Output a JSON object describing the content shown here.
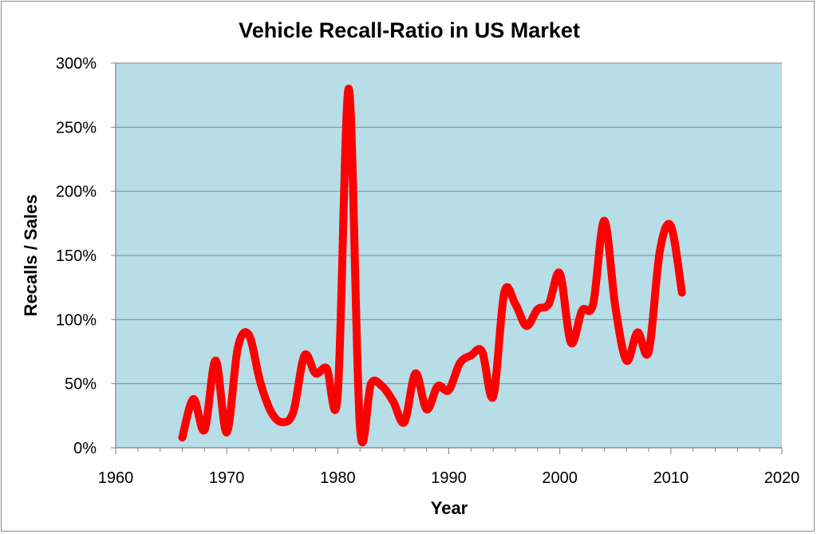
{
  "chart_data": {
    "type": "line",
    "title": "Vehicle Recall-Ratio  in US Market",
    "xlabel": "Year",
    "ylabel": "Recalls / Sales",
    "xlim": [
      1960,
      2020
    ],
    "ylim": [
      0,
      300
    ],
    "x_ticks": [
      1960,
      1970,
      1980,
      1990,
      2000,
      2010,
      2020
    ],
    "y_ticks": [
      0,
      50,
      100,
      150,
      200,
      250,
      300
    ],
    "y_tick_labels": [
      "0%",
      "50%",
      "100%",
      "150%",
      "200%",
      "250%",
      "300%"
    ],
    "grid": "horizontal",
    "legend": "none",
    "plot_background": "#b7dde7",
    "series": [
      {
        "color": "#ff0000",
        "x": [
          1966,
          1967,
          1968,
          1969,
          1970,
          1971,
          1972,
          1973,
          1974,
          1975,
          1976,
          1977,
          1978,
          1979,
          1980,
          1981,
          1982,
          1983,
          1984,
          1985,
          1986,
          1987,
          1988,
          1989,
          1990,
          1991,
          1992,
          1993,
          1994,
          1995,
          1996,
          1997,
          1998,
          1999,
          2000,
          2001,
          2002,
          2003,
          2004,
          2005,
          2006,
          2007,
          2008,
          2009,
          2010,
          2011
        ],
        "y": [
          8,
          38,
          14,
          68,
          12,
          78,
          88,
          52,
          28,
          20,
          28,
          72,
          58,
          62,
          42,
          280,
          16,
          50,
          48,
          36,
          20,
          58,
          30,
          48,
          45,
          66,
          72,
          75,
          40,
          121,
          112,
          95,
          108,
          112,
          136,
          82,
          107,
          112,
          177,
          110,
          68,
          90,
          75,
          153,
          173,
          121
        ]
      }
    ]
  }
}
